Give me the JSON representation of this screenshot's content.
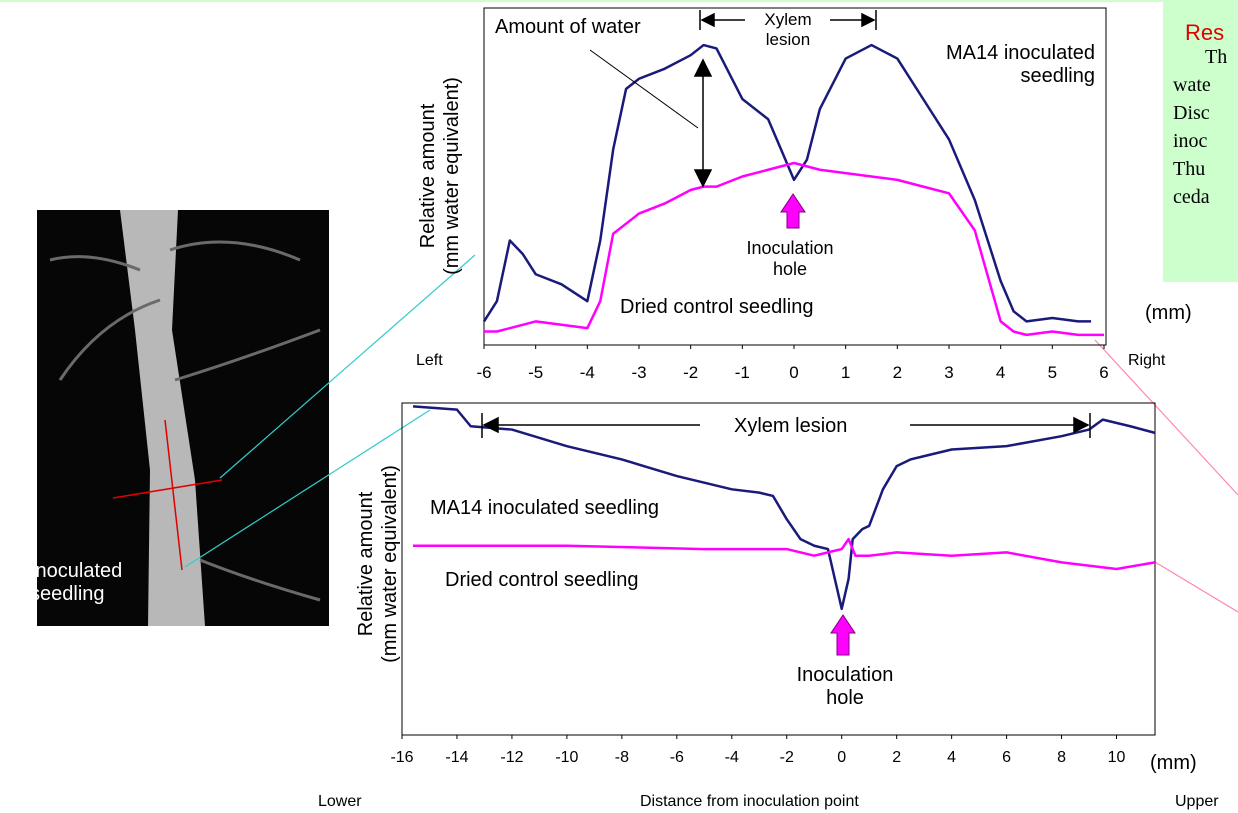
{
  "chart_data": [
    {
      "type": "line",
      "y_label": [
        "Relative amount",
        "(mm water equivalent)"
      ],
      "x_unit": "(mm)",
      "x_ends": [
        "Left",
        "Right"
      ],
      "annotations": [
        "Amount of water",
        "Xylem lesion",
        "Inoculation hole"
      ],
      "xlim": [
        -6,
        6
      ],
      "ylim": [
        0,
        10
      ],
      "xticks": [
        -6,
        -5,
        -4,
        -3,
        -2,
        -1,
        0,
        1,
        2,
        3,
        4,
        5,
        6
      ],
      "series": [
        {
          "name": "MA14 inoculated seedling",
          "color": "#1a1a7a",
          "x": [
            -6,
            -5.75,
            -5.5,
            -5.25,
            -5,
            -4.5,
            -4,
            -3.75,
            -3.5,
            -3.25,
            -3,
            -2.5,
            -2,
            -1.75,
            -1.5,
            -1,
            -0.5,
            -0.25,
            0,
            0.25,
            0.5,
            1,
            1.5,
            2,
            2.5,
            3,
            3.5,
            4,
            4.25,
            4.5,
            5,
            5.5,
            5.75
          ],
          "values": [
            0.7,
            1.3,
            3.1,
            2.7,
            2.1,
            1.8,
            1.3,
            3.1,
            5.8,
            7.6,
            7.9,
            8.2,
            8.6,
            8.9,
            8.8,
            7.3,
            6.7,
            5.8,
            4.9,
            5.5,
            7.0,
            8.5,
            8.9,
            8.5,
            7.3,
            6.1,
            4.3,
            1.9,
            1.0,
            0.7,
            0.8,
            0.7,
            0.7
          ]
        },
        {
          "name": "Dried control seedling",
          "color": "#ff00ff",
          "x": [
            -6,
            -5.75,
            -5.5,
            -5.25,
            -5,
            -4.5,
            -4,
            -3.75,
            -3.5,
            -3.25,
            -3,
            -2.5,
            -2,
            -1.75,
            -1.5,
            -1,
            -0.5,
            -0.25,
            0,
            0.25,
            0.5,
            1,
            1.5,
            2,
            2.5,
            3,
            3.5,
            4,
            4.25,
            4.5,
            5,
            5.5,
            5.75,
            6
          ],
          "values": [
            0.4,
            0.4,
            0.5,
            0.6,
            0.7,
            0.6,
            0.5,
            1.3,
            3.3,
            3.6,
            3.9,
            4.2,
            4.6,
            4.7,
            4.7,
            5.0,
            5.2,
            5.3,
            5.4,
            5.3,
            5.2,
            5.1,
            5.0,
            4.9,
            4.7,
            4.5,
            3.4,
            0.7,
            0.4,
            0.3,
            0.4,
            0.3,
            0.3,
            0.3
          ]
        }
      ]
    },
    {
      "type": "line",
      "y_label": [
        "Relative amount",
        "(mm water equivalent)"
      ],
      "x_label": "Distance from inoculation point",
      "x_unit": "(mm)",
      "x_ends": [
        "Lower",
        "Upper"
      ],
      "annotations": [
        "Xylem lesion",
        "Inoculation hole"
      ],
      "xlim": [
        -16,
        11.4
      ],
      "ylim": [
        0,
        10
      ],
      "xticks": [
        -16,
        -14,
        -12,
        -10,
        -8,
        -6,
        -4,
        -2,
        0,
        2,
        4,
        6,
        8,
        10
      ],
      "series": [
        {
          "name": "MA14 inoculated seedling",
          "color": "#1a1a7a",
          "x": [
            -15.6,
            -14,
            -13.5,
            -12,
            -10,
            -8,
            -6,
            -4,
            -3,
            -2.5,
            -2,
            -1.5,
            -1,
            -0.5,
            -0.25,
            0,
            0.25,
            0.4,
            0.75,
            1,
            1.5,
            2,
            2.5,
            3,
            4,
            6,
            8,
            9,
            9.5,
            10.5,
            11.4
          ],
          "values": [
            9.9,
            9.8,
            9.3,
            9.2,
            8.7,
            8.3,
            7.8,
            7.4,
            7.3,
            7.2,
            6.5,
            5.9,
            5.7,
            5.6,
            4.7,
            3.8,
            4.7,
            5.9,
            6.2,
            6.3,
            7.4,
            8.1,
            8.3,
            8.4,
            8.6,
            8.7,
            9.0,
            9.2,
            9.5,
            9.3,
            9.1
          ]
        },
        {
          "name": "Dried control seedling",
          "color": "#ff00ff",
          "x": [
            -15.6,
            -10,
            -5,
            -2,
            -1,
            -0.5,
            0,
            0.25,
            0.5,
            1,
            2,
            4,
            6,
            8,
            10,
            11.4
          ],
          "values": [
            5.7,
            5.7,
            5.6,
            5.6,
            5.4,
            5.5,
            5.6,
            5.9,
            5.4,
            5.4,
            5.5,
            5.4,
            5.5,
            5.2,
            5.0,
            5.2
          ]
        }
      ]
    }
  ],
  "photo": {
    "caption": "Inoculated seedling"
  },
  "text_box": {
    "heading": "Res",
    "lines": [
      "Th",
      "wate",
      "Disc",
      "inoc",
      "Thu",
      "ceda"
    ]
  }
}
